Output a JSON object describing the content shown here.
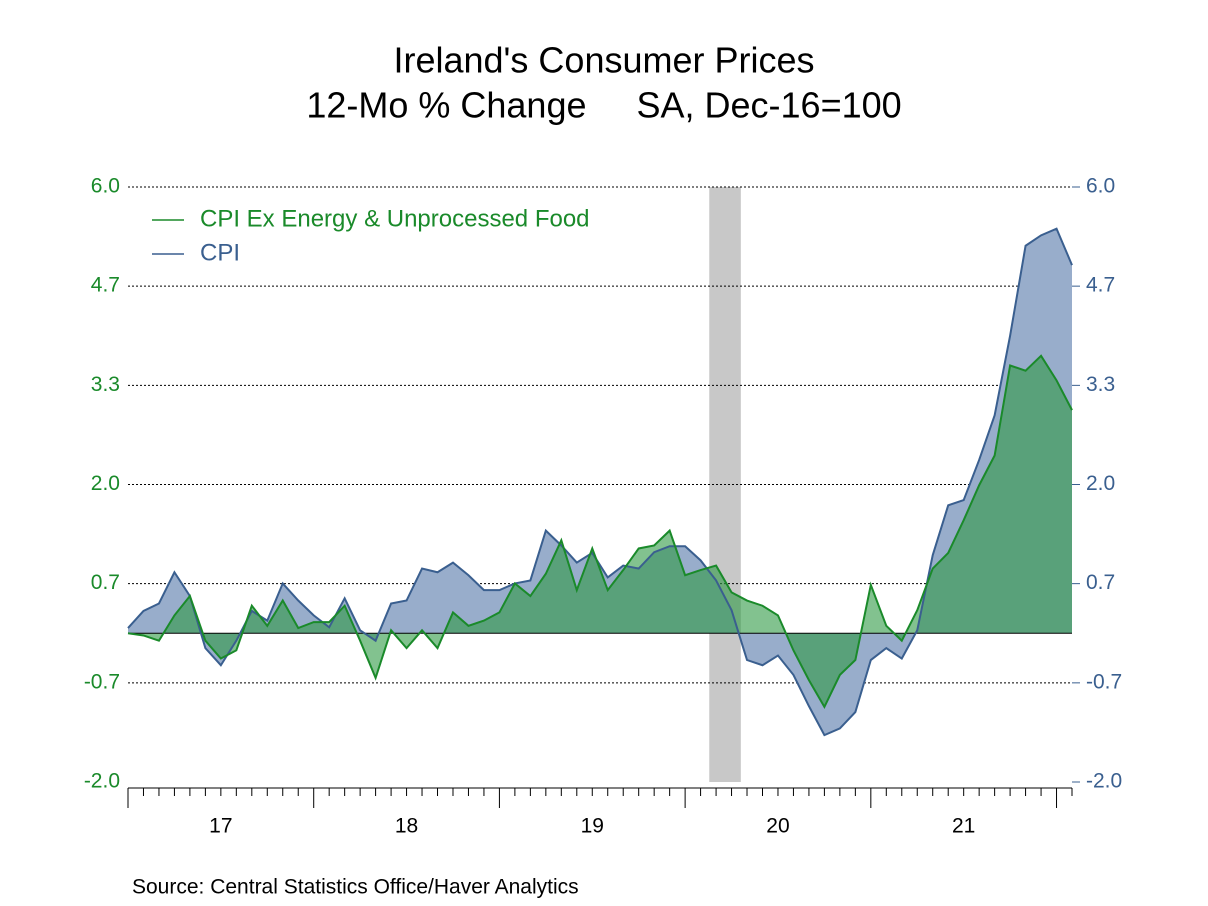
{
  "chart_data": {
    "type": "area",
    "title": "Ireland's Consumer Prices",
    "subtitle": "12-Mo % Change     SA, Dec-16=100",
    "source": "Source:  Central Statistics Office/Haver Analytics",
    "x": [
      2017,
      2017.0833,
      2017.1667,
      2017.25,
      2017.3333,
      2017.4167,
      2017.5,
      2017.5833,
      2017.6667,
      2017.75,
      2017.8333,
      2017.9167,
      2018,
      2018.0833,
      2018.1667,
      2018.25,
      2018.3333,
      2018.4167,
      2018.5,
      2018.5833,
      2018.6667,
      2018.75,
      2018.8333,
      2018.9167,
      2019,
      2019.0833,
      2019.1667,
      2019.25,
      2019.3333,
      2019.4167,
      2019.5,
      2019.5833,
      2019.6667,
      2019.75,
      2019.8333,
      2019.9167,
      2020,
      2020.0833,
      2020.1667,
      2020.25,
      2020.3333,
      2020.4167,
      2020.5,
      2020.5833,
      2020.6667,
      2020.75,
      2020.8333,
      2020.9167,
      2021,
      2021.0833,
      2021.1667,
      2021.25,
      2021.3333,
      2021.4167,
      2021.5,
      2021.5833,
      2021.6667,
      2021.75,
      2021.8333,
      2021.9167,
      2022,
      2022.0833
    ],
    "series": [
      {
        "name": "CPI",
        "color": "#3a5f8f",
        "fill": "#98adcb",
        "axis": "y2",
        "values": [
          0.07,
          0.3,
          0.4,
          0.82,
          0.5,
          -0.2,
          -0.43,
          -0.1,
          0.3,
          0.17,
          0.67,
          0.44,
          0.24,
          0.08,
          0.47,
          0.04,
          -0.1,
          0.4,
          0.44,
          0.87,
          0.82,
          0.95,
          0.78,
          0.58,
          0.58,
          0.67,
          0.71,
          1.38,
          1.18,
          0.95,
          1.08,
          0.75,
          0.91,
          0.87,
          1.09,
          1.17,
          1.17,
          0.98,
          0.71,
          0.31,
          -0.36,
          -0.43,
          -0.3,
          -0.56,
          -0.98,
          -1.37,
          -1.28,
          -1.06,
          -0.36,
          -0.2,
          -0.34,
          0.04,
          1.05,
          1.72,
          1.79,
          2.33,
          2.93,
          4.0,
          5.21,
          5.35,
          5.44,
          4.95
        ]
      },
      {
        "name": "CPI Ex Energy & Unprocessed Food",
        "color": "#1a8a2a",
        "fill": "#2f9a45",
        "values": [
          0,
          -0.03,
          -0.1,
          0.24,
          0.5,
          -0.1,
          -0.34,
          -0.23,
          0.37,
          0.1,
          0.44,
          0.07,
          0.15,
          0.15,
          0.37,
          -0.1,
          -0.6,
          0.04,
          -0.2,
          0.04,
          -0.2,
          0.28,
          0.1,
          0.17,
          0.28,
          0.67,
          0.5,
          0.8,
          1.25,
          0.58,
          1.14,
          0.58,
          0.85,
          1.14,
          1.18,
          1.38,
          0.78,
          0.85,
          0.91,
          0.55,
          0.44,
          0.37,
          0.24,
          -0.23,
          -0.63,
          -0.99,
          -0.56,
          -0.36,
          0.65,
          0.1,
          -0.1,
          0.31,
          0.87,
          1.08,
          1.52,
          1.99,
          2.39,
          3.6,
          3.53,
          3.73,
          3.4,
          3.0
        ]
      }
    ],
    "legend_order": [
      1,
      0
    ],
    "xlim": [
      2017,
      2022.0833
    ],
    "xticks": [
      {
        "value": 2017.5,
        "label": "17"
      },
      {
        "value": 2018.5,
        "label": "18"
      },
      {
        "value": 2019.5,
        "label": "19"
      },
      {
        "value": 2020.5,
        "label": "20"
      },
      {
        "value": 2021.5,
        "label": "21"
      }
    ],
    "ylim": [
      -2,
      6
    ],
    "yticks": [
      {
        "value": -2,
        "label": "-2.0"
      },
      {
        "value": -0.667,
        "label": "-0.7"
      },
      {
        "value": 0.667,
        "label": "0.7"
      },
      {
        "value": 2,
        "label": "2.0"
      },
      {
        "value": 3.333,
        "label": "3.3"
      },
      {
        "value": 4.667,
        "label": "4.7"
      },
      {
        "value": 6,
        "label": "6.0"
      }
    ],
    "y2lim": [
      -2,
      6
    ],
    "y2ticks": [
      {
        "value": -2,
        "label": "-2.0"
      },
      {
        "value": -0.667,
        "label": "-0.7"
      },
      {
        "value": 0.667,
        "label": "0.7"
      },
      {
        "value": 2,
        "label": "2.0"
      },
      {
        "value": 3.333,
        "label": "3.3"
      },
      {
        "value": 4.667,
        "label": "4.7"
      },
      {
        "value": 6,
        "label": "6.0"
      }
    ],
    "recession": [
      2020.13,
      2020.3
    ],
    "grid": true
  }
}
